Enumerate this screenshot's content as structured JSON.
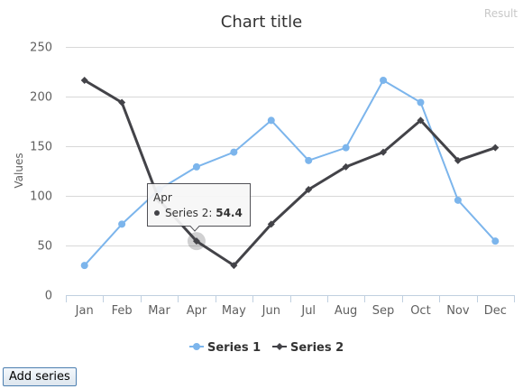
{
  "result_label": "Result",
  "add_series_button": "Add series",
  "tooltip": {
    "category": "Apr",
    "series": "Series 2",
    "value_text": "54.4"
  },
  "chart_data": {
    "type": "line",
    "title": "Chart title",
    "xlabel": "",
    "ylabel": "Values",
    "ylim": [
      0,
      250
    ],
    "yticks": [
      0,
      50,
      100,
      150,
      200,
      250
    ],
    "grid": true,
    "legend_position": "bottom",
    "categories": [
      "Jan",
      "Feb",
      "Mar",
      "Apr",
      "May",
      "Jun",
      "Jul",
      "Aug",
      "Sep",
      "Oct",
      "Nov",
      "Dec"
    ],
    "series": [
      {
        "name": "Series 1",
        "color": "#7cb5ec",
        "marker": "circle",
        "values": [
          29.9,
          71.5,
          106.4,
          129.2,
          144.0,
          176.0,
          135.6,
          148.5,
          216.4,
          194.1,
          95.6,
          54.4
        ]
      },
      {
        "name": "Series 2",
        "color": "#434348",
        "marker": "diamond",
        "values": [
          216.4,
          194.1,
          95.6,
          54.4,
          29.9,
          71.5,
          106.4,
          129.2,
          144.0,
          176.0,
          135.6,
          148.5
        ]
      }
    ],
    "highlight": {
      "series_index": 1,
      "point_index": 3
    }
  }
}
